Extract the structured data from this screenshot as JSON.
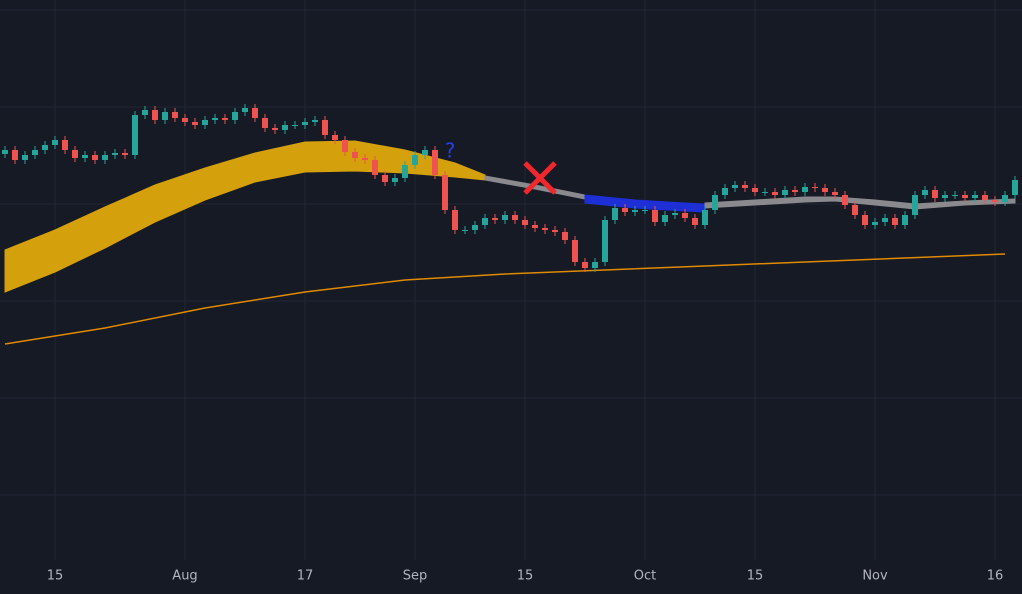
{
  "chart_data": {
    "type": "candlestick",
    "up_color": "#26a69a",
    "down_color": "#ef5350",
    "open": [
      440,
      444,
      434,
      439,
      444,
      449,
      454,
      444,
      436,
      439,
      434,
      439,
      441,
      439,
      479,
      484,
      474,
      482,
      476,
      472,
      469,
      474,
      476,
      474,
      482,
      486,
      476,
      466,
      464,
      469,
      469,
      472,
      474,
      459,
      454,
      442,
      436,
      434,
      419,
      412,
      416,
      429,
      439,
      444,
      419,
      384,
      364,
      364,
      369,
      376,
      374,
      379,
      374,
      369,
      366,
      364,
      362,
      354,
      332,
      326,
      332,
      374,
      386,
      382,
      384,
      384,
      372,
      379,
      381,
      376,
      369,
      384,
      399,
      406,
      409,
      406,
      402,
      402,
      399,
      404,
      402,
      407,
      406,
      402,
      399,
      389,
      379,
      369,
      372,
      376,
      369,
      379,
      399,
      404,
      396,
      399,
      399,
      396,
      399,
      394,
      392,
      399
    ],
    "high": [
      448,
      448,
      443,
      448,
      453,
      458,
      458,
      448,
      443,
      443,
      443,
      445,
      445,
      483,
      488,
      488,
      486,
      486,
      480,
      476,
      478,
      480,
      480,
      486,
      490,
      490,
      480,
      470,
      473,
      473,
      476,
      478,
      478,
      463,
      458,
      446,
      440,
      438,
      423,
      420,
      433,
      443,
      448,
      448,
      423,
      388,
      368,
      373,
      380,
      380,
      383,
      383,
      378,
      373,
      370,
      368,
      366,
      358,
      336,
      336,
      378,
      390,
      390,
      388,
      388,
      388,
      383,
      385,
      385,
      380,
      388,
      403,
      410,
      413,
      413,
      410,
      406,
      406,
      408,
      408,
      411,
      411,
      410,
      406,
      403,
      393,
      383,
      376,
      380,
      380,
      383,
      403,
      408,
      408,
      403,
      403,
      403,
      403,
      403,
      398,
      403,
      418
    ],
    "low": [
      436,
      430,
      430,
      435,
      440,
      445,
      440,
      432,
      432,
      430,
      430,
      435,
      435,
      435,
      475,
      470,
      470,
      472,
      468,
      465,
      465,
      470,
      470,
      470,
      478,
      472,
      462,
      460,
      460,
      465,
      465,
      468,
      455,
      450,
      438,
      432,
      430,
      415,
      408,
      408,
      412,
      425,
      435,
      415,
      380,
      360,
      360,
      360,
      365,
      370,
      370,
      370,
      365,
      362,
      360,
      358,
      350,
      328,
      322,
      322,
      328,
      370,
      378,
      378,
      380,
      368,
      368,
      375,
      372,
      365,
      365,
      380,
      395,
      402,
      402,
      398,
      398,
      395,
      395,
      398,
      398,
      402,
      398,
      395,
      385,
      375,
      365,
      365,
      368,
      365,
      365,
      375,
      395,
      392,
      392,
      395,
      392,
      392,
      390,
      388,
      388,
      395
    ],
    "close": [
      444,
      434,
      439,
      444,
      449,
      454,
      444,
      436,
      439,
      434,
      439,
      441,
      439,
      479,
      484,
      474,
      482,
      476,
      472,
      469,
      474,
      476,
      474,
      482,
      486,
      476,
      466,
      464,
      469,
      469,
      472,
      474,
      459,
      454,
      442,
      436,
      434,
      419,
      412,
      416,
      429,
      439,
      444,
      419,
      384,
      364,
      364,
      369,
      376,
      374,
      379,
      374,
      369,
      366,
      364,
      362,
      354,
      332,
      326,
      332,
      374,
      386,
      382,
      384,
      384,
      372,
      379,
      381,
      376,
      369,
      384,
      399,
      406,
      409,
      406,
      402,
      402,
      399,
      404,
      402,
      407,
      406,
      402,
      399,
      389,
      379,
      369,
      372,
      376,
      369,
      379,
      399,
      404,
      396,
      399,
      399,
      396,
      399,
      394,
      392,
      399,
      414
    ],
    "ylim": [
      34,
      594
    ],
    "yticks": [
      584,
      487,
      390,
      293,
      196,
      99
    ],
    "grid": true,
    "xticks": [
      {
        "value": 5,
        "label": "15"
      },
      {
        "value": 18,
        "label": "Aug"
      },
      {
        "value": 30,
        "label": "17"
      },
      {
        "value": 41,
        "label": "Sep"
      },
      {
        "value": 52,
        "label": "15"
      },
      {
        "value": 64,
        "label": "Oct"
      },
      {
        "value": 75,
        "label": "15"
      },
      {
        "value": 87,
        "label": "Nov"
      },
      {
        "value": 99,
        "label": "16"
      }
    ],
    "bands": [
      {
        "color": "#d4a00c",
        "x": [
          0,
          5,
          10,
          15,
          20,
          25,
          30,
          35,
          40,
          45,
          48
        ],
        "upper": [
          344,
          364,
          387,
          409,
          426,
          441,
          452,
          453,
          444,
          431,
          419
        ],
        "lower": [
          302,
          322,
          346,
          372,
          394,
          412,
          422,
          423,
          421,
          417,
          414
        ]
      },
      {
        "color": "#8a8a8e",
        "x": [
          48,
          53,
          58
        ],
        "upper": [
          418,
          409,
          399
        ],
        "lower": [
          414,
          405,
          395
        ]
      },
      {
        "color": "#1e2fd6",
        "x": [
          58,
          63,
          68,
          70
        ],
        "upper": [
          399,
          394,
          391,
          390
        ],
        "lower": [
          391,
          386,
          383,
          382
        ]
      },
      {
        "color": "#8a8a8e",
        "x": [
          70,
          75,
          80,
          83,
          87,
          91,
          96,
          101
        ],
        "upper": [
          391,
          394,
          397,
          397,
          394,
          390,
          393,
          395
        ],
        "lower": [
          386,
          389,
          392,
          393,
          389,
          385,
          389,
          391
        ]
      }
    ],
    "ma": {
      "color": "#e08a00",
      "x": [
        0,
        10,
        20,
        30,
        40,
        50,
        60,
        70,
        80,
        90,
        100
      ],
      "values": [
        250,
        266,
        286,
        302,
        314,
        320,
        324,
        328,
        332,
        336,
        340
      ]
    },
    "annotations": [
      {
        "text": "?"
      }
    ]
  }
}
